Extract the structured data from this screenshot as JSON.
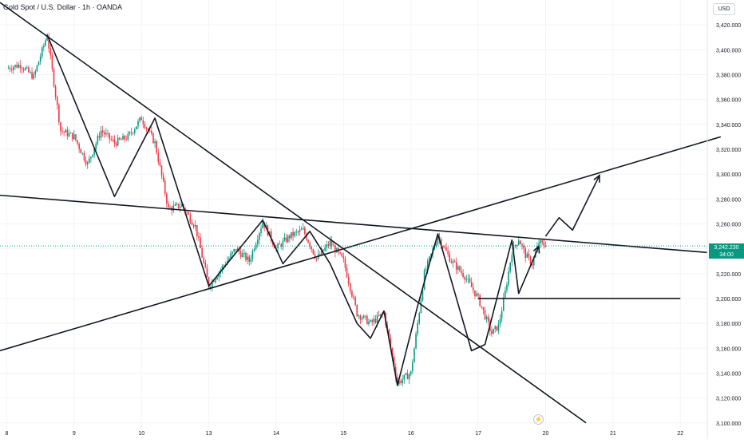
{
  "header": {
    "title": "Gold Spot / U.S. Dollar · 1h · OANDA",
    "currency_button": "USD"
  },
  "price_label": {
    "price": "3,242.230",
    "countdown": "34:00"
  },
  "colors": {
    "up": "#089981",
    "down": "#f23645",
    "drawing": "#131722",
    "axis_text": "#131722",
    "grid": "#f0f3fa"
  },
  "icons": {
    "alert": "lightning-bolt-icon"
  },
  "chart_data": {
    "type": "candlestick",
    "symbol": "XAUUSD",
    "timeframe": "1h",
    "y_tick_labels": [
      "3,420.000",
      "3,400.000",
      "3,380.000",
      "3,360.000",
      "3,340.000",
      "3,320.000",
      "3,300.000",
      "3,280.000",
      "3,260.000",
      "3,240.000",
      "3,220.000",
      "3,200.000",
      "3,180.000",
      "3,160.000",
      "3,140.000",
      "3,120.000",
      "3,100.000"
    ],
    "y_ticks": [
      3420,
      3400,
      3380,
      3360,
      3340,
      3320,
      3300,
      3280,
      3260,
      3240,
      3220,
      3200,
      3180,
      3160,
      3140,
      3120,
      3100
    ],
    "x_tick_labels": [
      "8",
      "9",
      "10",
      "13",
      "14",
      "15",
      "16",
      "17",
      "20",
      "21",
      "22"
    ],
    "x_ticks": [
      0,
      10,
      20,
      30,
      40,
      50,
      60,
      70,
      80,
      90,
      100
    ],
    "ylim": [
      3096,
      3440
    ],
    "xlim": [
      -1,
      104
    ],
    "last_price": 3242.23,
    "anchors": [
      [
        0,
        3385
      ],
      [
        2,
        3388
      ],
      [
        4,
        3378
      ],
      [
        6,
        3412
      ],
      [
        8,
        3335
      ],
      [
        10,
        3330
      ],
      [
        12,
        3308
      ],
      [
        14,
        3335
      ],
      [
        16,
        3325
      ],
      [
        18,
        3330
      ],
      [
        20,
        3345
      ],
      [
        22,
        3325
      ],
      [
        24,
        3272
      ],
      [
        26,
        3275
      ],
      [
        28,
        3258
      ],
      [
        30,
        3210
      ],
      [
        32,
        3225
      ],
      [
        34,
        3240
      ],
      [
        36,
        3230
      ],
      [
        38,
        3262
      ],
      [
        40,
        3240
      ],
      [
        42,
        3250
      ],
      [
        44,
        3255
      ],
      [
        46,
        3232
      ],
      [
        48,
        3245
      ],
      [
        50,
        3230
      ],
      [
        52,
        3188
      ],
      [
        54,
        3180
      ],
      [
        56,
        3188
      ],
      [
        58,
        3132
      ],
      [
        60,
        3140
      ],
      [
        62,
        3220
      ],
      [
        64,
        3250
      ],
      [
        66,
        3230
      ],
      [
        68,
        3218
      ],
      [
        70,
        3200
      ],
      [
        72,
        3172
      ],
      [
        73,
        3178
      ],
      [
        74,
        3205
      ],
      [
        75,
        3238
      ],
      [
        76,
        3248
      ],
      [
        77,
        3235
      ],
      [
        78,
        3228
      ],
      [
        79,
        3245
      ],
      [
        80,
        3242
      ]
    ],
    "drawings": {
      "trendlines": [
        {
          "name": "descending-resistance",
          "from": [
            -1,
            3438
          ],
          "to": [
            86,
            3100
          ]
        },
        {
          "name": "upper-resistance",
          "from": [
            -1,
            3283
          ],
          "to": [
            104,
            3237
          ]
        },
        {
          "name": "rising-support",
          "from": [
            -1,
            3158
          ],
          "to": [
            106,
            3330
          ]
        },
        {
          "name": "horizontal-support",
          "from": [
            70,
            3200
          ],
          "to": [
            100,
            3200
          ]
        }
      ],
      "zigzag": [
        [
          6,
          3412
        ],
        [
          16,
          3282
        ],
        [
          22,
          3345
        ],
        [
          30,
          3210
        ],
        [
          38,
          3263
        ],
        [
          41,
          3228
        ],
        [
          45,
          3254
        ],
        [
          48,
          3228
        ],
        [
          52,
          3180
        ],
        [
          54,
          3168
        ],
        [
          56,
          3190
        ],
        [
          58,
          3130
        ],
        [
          61,
          3194
        ],
        [
          64,
          3252
        ],
        [
          69,
          3158
        ],
        [
          71,
          3163
        ],
        [
          75,
          3247
        ],
        [
          76,
          3204
        ],
        [
          79,
          3242
        ]
      ],
      "projection": [
        [
          80,
          3250
        ],
        [
          82,
          3265
        ],
        [
          84,
          3255
        ],
        [
          88,
          3299
        ]
      ]
    }
  }
}
